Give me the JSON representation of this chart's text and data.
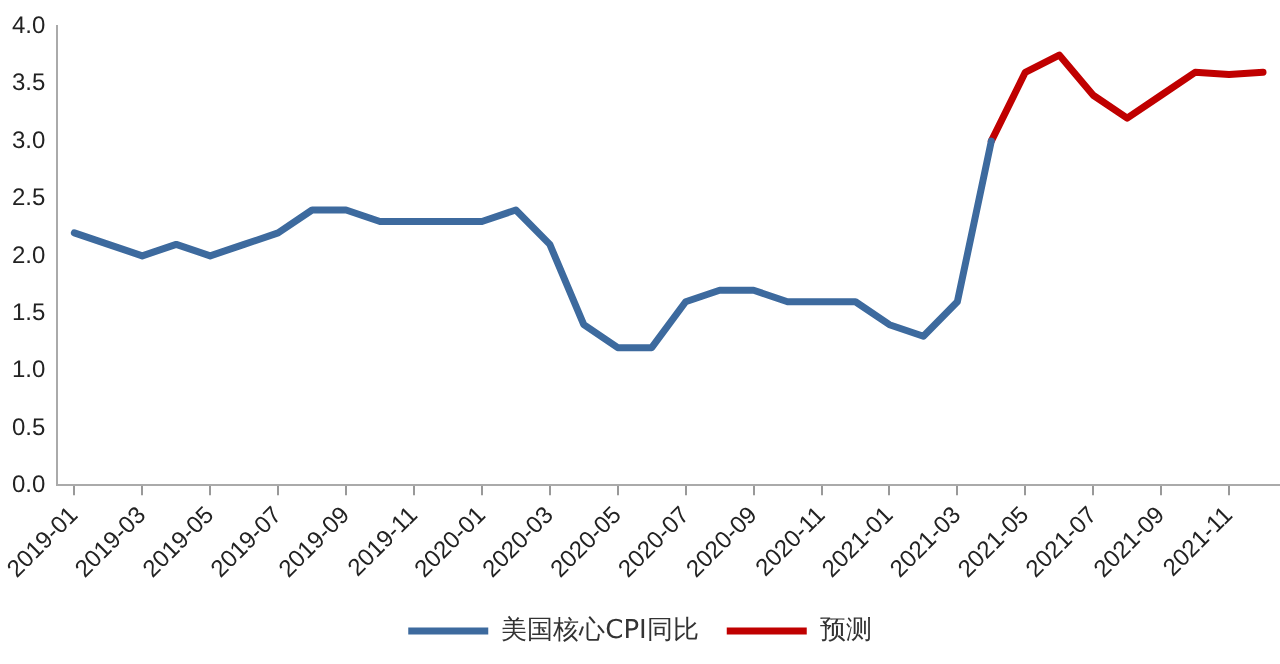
{
  "chart_data": {
    "type": "line",
    "categories": [
      "2019-01",
      null,
      "2019-03",
      null,
      "2019-05",
      null,
      "2019-07",
      null,
      "2019-09",
      null,
      "2019-11",
      null,
      "2020-01",
      null,
      "2020-03",
      null,
      "2020-05",
      null,
      "2020-07",
      null,
      "2020-09",
      null,
      "2020-11",
      null,
      "2021-01",
      null,
      "2021-03",
      null,
      "2021-05",
      null,
      "2021-07",
      null,
      "2021-09",
      null,
      "2021-11",
      null
    ],
    "series": [
      {
        "name": "美国核心CPI同比",
        "color": "#3d6a9e",
        "values": [
          2.2,
          2.1,
          2.0,
          2.1,
          2.0,
          2.1,
          2.2,
          2.4,
          2.4,
          2.3,
          2.3,
          2.3,
          2.3,
          2.4,
          2.1,
          1.4,
          1.2,
          1.2,
          1.6,
          1.7,
          1.7,
          1.6,
          1.6,
          1.6,
          1.4,
          1.3,
          1.6,
          3.0,
          null,
          null,
          null,
          null,
          null,
          null,
          null,
          null
        ]
      },
      {
        "name": "预测",
        "color": "#c00000",
        "values": [
          null,
          null,
          null,
          null,
          null,
          null,
          null,
          null,
          null,
          null,
          null,
          null,
          null,
          null,
          null,
          null,
          null,
          null,
          null,
          null,
          null,
          null,
          null,
          null,
          null,
          null,
          null,
          3.0,
          3.6,
          3.75,
          3.4,
          3.2,
          3.4,
          3.6,
          3.58,
          3.6
        ]
      }
    ],
    "ylim": [
      0,
      4
    ],
    "yticks": [
      {
        "value": 0,
        "label": "0.0"
      },
      {
        "value": 0.5,
        "label": "0.5"
      },
      {
        "value": 1,
        "label": "1.0"
      },
      {
        "value": 1.5,
        "label": "1.5"
      },
      {
        "value": 2,
        "label": "2.0"
      },
      {
        "value": 2.5,
        "label": "2.5"
      },
      {
        "value": 3,
        "label": "3.0"
      },
      {
        "value": 3.5,
        "label": "3.5"
      },
      {
        "value": 4,
        "label": "4.0"
      }
    ],
    "grid": false,
    "legend": "bottom",
    "marker": "none"
  }
}
